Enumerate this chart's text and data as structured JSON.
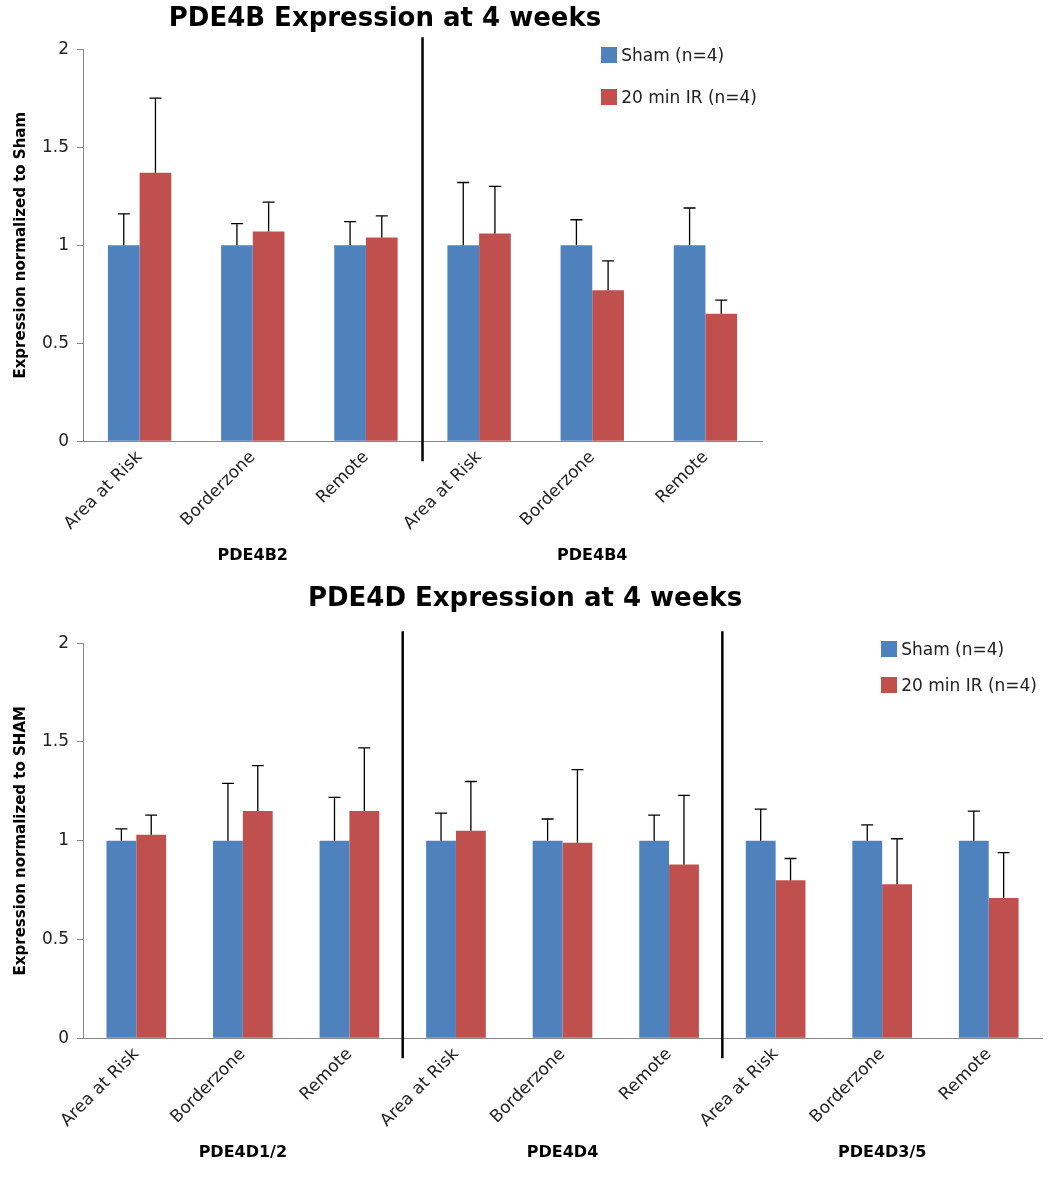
{
  "chart_data": [
    {
      "type": "bar",
      "title": "PDE4B Expression at 4 weeks",
      "ylabel": "Expression normalized to Sham",
      "categories": [
        "Area at Risk",
        "Borderzone",
        "Remote",
        "Area at Risk",
        "Borderzone",
        "Remote"
      ],
      "series": [
        {
          "name": "Sham (n=4)",
          "color": "#4f81bd",
          "values": [
            1,
            1,
            1,
            1,
            1,
            1
          ],
          "errors": [
            [
              1,
              1.16
            ],
            [
              1,
              1.11
            ],
            [
              1,
              1.12
            ],
            [
              1,
              1.32
            ],
            [
              1,
              1.13
            ],
            [
              1,
              1.19
            ]
          ]
        },
        {
          "name": "20 min IR (n=4)",
          "color": "#c0504d",
          "values": [
            1.37,
            1.07,
            1.04,
            1.06,
            0.77,
            0.65
          ],
          "errors": [
            [
              1.37,
              1.75
            ],
            [
              1.07,
              1.22
            ],
            [
              1.04,
              1.15
            ],
            [
              1.06,
              1.3
            ],
            [
              0.77,
              0.92
            ],
            [
              0.65,
              0.72
            ]
          ]
        }
      ],
      "ylim": [
        0,
        2
      ],
      "yticks": [
        0,
        0.5,
        1,
        1.5,
        2
      ],
      "legend": "top right",
      "annotations": [
        "PDE4B2",
        "PDE4B4"
      ]
    },
    {
      "type": "bar",
      "title": "PDE4D Expression at 4 weeks",
      "ylabel": "Expression normalized to SHAM",
      "categories": [
        "Area at Risk",
        "Borderzone",
        "Remote",
        "Area at Risk",
        "Borderzone",
        "Remote",
        "Area at Risk",
        "Borderzone",
        "Remote"
      ],
      "series": [
        {
          "name": "Sham (n=4)",
          "color": "#4f81bd",
          "values": [
            1,
            1,
            1,
            1,
            1,
            1,
            1,
            1,
            1
          ],
          "errors": [
            [
              1,
              1.06
            ],
            [
              1,
              1.29
            ],
            [
              1,
              1.22
            ],
            [
              1,
              1.14
            ],
            [
              1,
              1.11
            ],
            [
              1,
              1.13
            ],
            [
              1,
              1.16
            ],
            [
              1,
              1.08
            ],
            [
              1,
              1.15
            ]
          ]
        },
        {
          "name": "20 min IR (n=4)",
          "color": "#c0504d",
          "values": [
            1.03,
            1.15,
            1.15,
            1.05,
            0.99,
            0.88,
            0.8,
            0.78,
            0.71
          ],
          "errors": [
            [
              1.03,
              1.13
            ],
            [
              1.15,
              1.38
            ],
            [
              1.15,
              1.47
            ],
            [
              1.05,
              1.3
            ],
            [
              0.99,
              1.36
            ],
            [
              0.88,
              1.23
            ],
            [
              0.8,
              0.91
            ],
            [
              0.78,
              1.01
            ],
            [
              0.71,
              0.94
            ]
          ]
        }
      ],
      "ylim": [
        0,
        2
      ],
      "yticks": [
        0,
        0.5,
        1,
        1.5,
        2
      ],
      "legend": "top right",
      "annotations": [
        "PDE4D1/2",
        "PDE4D4",
        "PDE4D3/5"
      ]
    }
  ]
}
